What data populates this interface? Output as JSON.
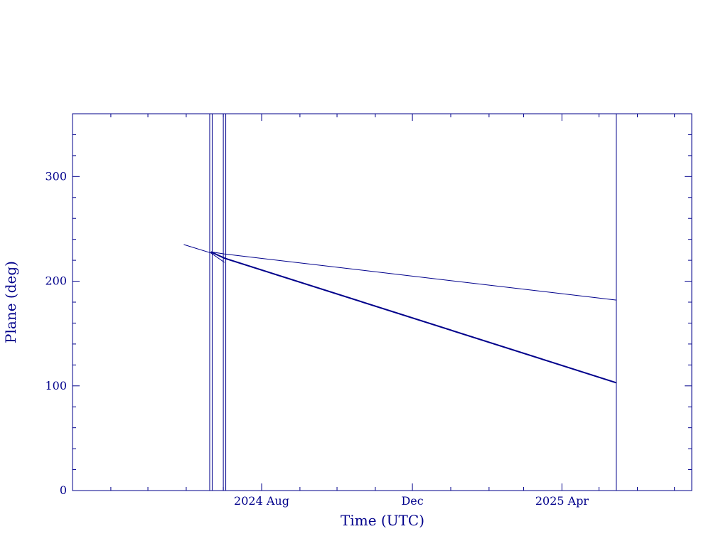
{
  "chart_data": {
    "type": "line",
    "title": "",
    "xlabel": "Time (UTC)",
    "ylabel": "Plane (deg)",
    "color": "#00008b",
    "xlim": [
      "2024-03-01",
      "2025-07-15"
    ],
    "ylim": [
      0,
      360
    ],
    "x_tick_labels": [
      {
        "date": "2024-08-01",
        "label": "2024 Aug"
      },
      {
        "date": "2024-12-01",
        "label": "Dec"
      },
      {
        "date": "2025-04-01",
        "label": "2025 Apr"
      }
    ],
    "y_ticks": [
      0,
      100,
      200,
      300
    ],
    "grid": false,
    "series": [
      {
        "values": [
          {
            "x": "2024-05-30",
            "y": 235
          },
          {
            "x": "2024-06-21",
            "y": 227
          },
          {
            "x": "2024-07-02",
            "y": 218
          }
        ]
      },
      {
        "values": [
          {
            "x": "2024-06-21",
            "y": 228
          },
          {
            "x": "2024-07-02",
            "y": 226
          },
          {
            "x": "2025-05-15",
            "y": 182
          }
        ]
      },
      {
        "values": [
          {
            "x": "2024-06-21",
            "y": 228
          },
          {
            "x": "2024-07-02",
            "y": 222
          },
          {
            "x": "2025-05-15",
            "y": 103
          }
        ]
      }
    ],
    "vertical_lines": [
      "2024-06-20",
      "2024-06-22",
      "2024-07-01",
      "2024-07-03",
      "2025-05-15"
    ]
  }
}
